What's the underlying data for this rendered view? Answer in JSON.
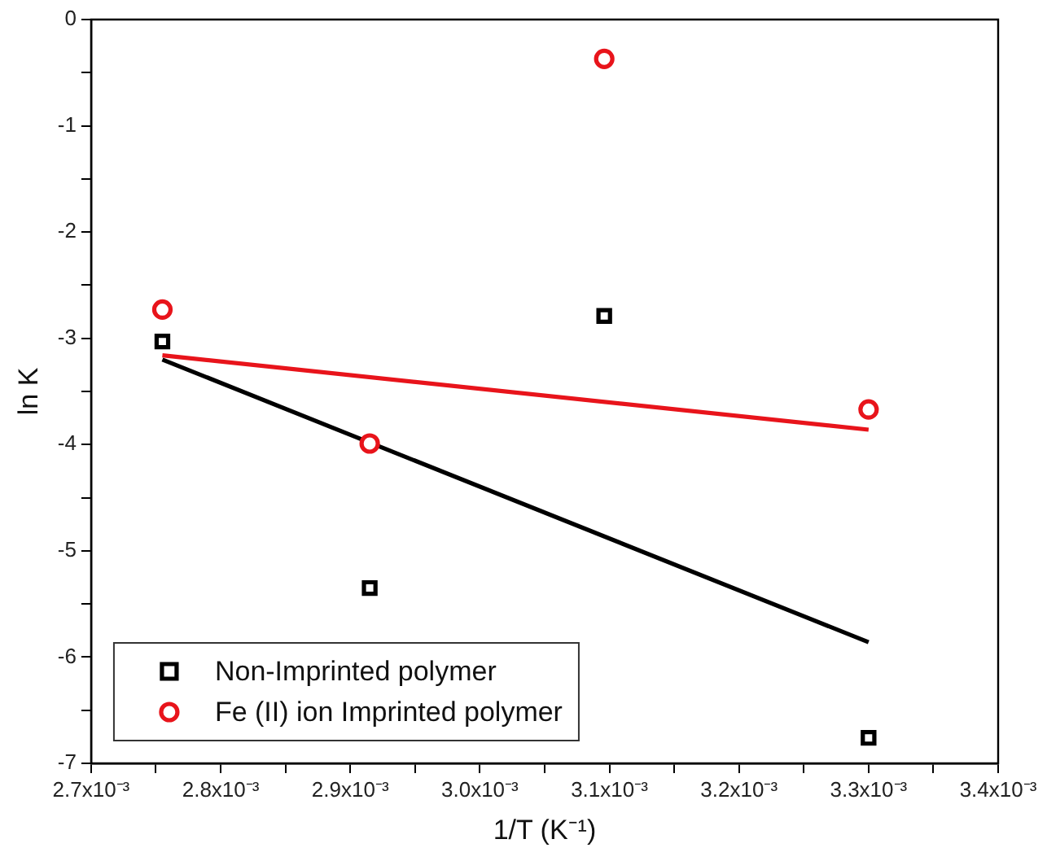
{
  "chart_data": {
    "type": "scatter",
    "xlabel": "1/T (K⁻¹)",
    "ylabel": "ln K",
    "series": [
      {
        "name": "Non-Imprinted polymer",
        "marker": "square",
        "color": "#000000",
        "x": [
          0.002755,
          0.002915,
          0.003096,
          0.0033
        ],
        "values": [
          -3.03,
          -5.35,
          -2.79,
          -6.76
        ]
      },
      {
        "name": "Fe (II) ion Imprinted polymer",
        "marker": "circle",
        "color": "#e8141b",
        "x": [
          0.002755,
          0.002915,
          0.003096,
          0.0033
        ],
        "values": [
          -2.73,
          -3.99,
          -0.37,
          -3.67
        ]
      },
      {
        "type": "line",
        "marker": "none",
        "color": "#000000",
        "x": [
          0.002755,
          0.0033
        ],
        "values": [
          -3.2,
          -5.86
        ]
      },
      {
        "type": "line",
        "marker": "none",
        "color": "#e8141b",
        "x": [
          0.002755,
          0.0033
        ],
        "values": [
          -3.16,
          -3.86
        ]
      }
    ],
    "xlim": [
      0.0027,
      0.0034
    ],
    "xticks": [
      {
        "value": 0.0027,
        "label": "2.7x10⁻³"
      },
      {
        "value": 0.00275,
        "label": null
      },
      {
        "value": 0.0028,
        "label": "2.8x10⁻³"
      },
      {
        "value": 0.00285,
        "label": null
      },
      {
        "value": 0.0029,
        "label": "2.9x10⁻³"
      },
      {
        "value": 0.00295,
        "label": null
      },
      {
        "value": 0.003,
        "label": "3.0x10⁻³"
      },
      {
        "value": 0.00305,
        "label": null
      },
      {
        "value": 0.0031,
        "label": "3.1x10⁻³"
      },
      {
        "value": 0.00315,
        "label": null
      },
      {
        "value": 0.0032,
        "label": "3.2x10⁻³"
      },
      {
        "value": 0.00325,
        "label": null
      },
      {
        "value": 0.0033,
        "label": "3.3x10⁻³"
      },
      {
        "value": 0.00335,
        "label": null
      },
      {
        "value": 0.0034,
        "label": "3.4x10⁻³"
      }
    ],
    "ylim": [
      -7,
      0
    ],
    "yticks": [
      -7,
      {
        "value": -6.5,
        "label": null
      },
      -6,
      {
        "value": -5.5,
        "label": null
      },
      -5,
      {
        "value": -4.5,
        "label": null
      },
      -4,
      {
        "value": -3.5,
        "label": null
      },
      -3,
      {
        "value": -2.5,
        "label": null
      },
      -2,
      {
        "value": -1.5,
        "label": null
      },
      -1,
      {
        "value": -0.5,
        "label": null
      },
      0
    ],
    "grid": false,
    "legend": "bottom left"
  }
}
